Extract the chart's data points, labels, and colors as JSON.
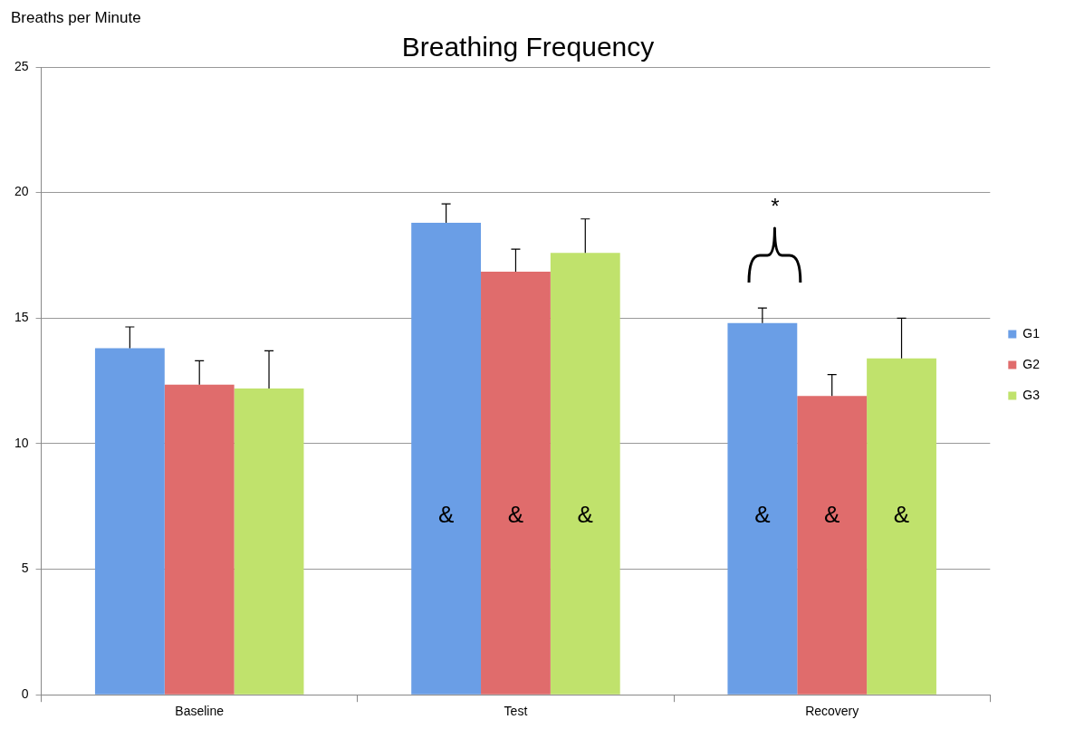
{
  "chart_data": {
    "type": "bar",
    "title": "Breathing Frequency",
    "ylabel": "Breaths per Minute",
    "categories": [
      "Baseline",
      "Test",
      "Recovery"
    ],
    "series": [
      {
        "name": "G1",
        "color": "#6a9ee6",
        "values": [
          13.8,
          18.8,
          14.8
        ],
        "errors": [
          [
            13.8,
            14.65
          ],
          [
            18.8,
            19.55
          ],
          [
            14.8,
            15.4
          ]
        ],
        "value_labels": [
          null,
          "&",
          "&"
        ]
      },
      {
        "name": "G2",
        "color": "#e06c6c",
        "values": [
          12.35,
          16.85,
          11.9
        ],
        "errors": [
          [
            12.35,
            13.3
          ],
          [
            16.85,
            17.75
          ],
          [
            11.9,
            12.75
          ]
        ],
        "value_labels": [
          null,
          "&",
          "&"
        ]
      },
      {
        "name": "G3",
        "color": "#c0e26c",
        "values": [
          12.2,
          17.6,
          13.4
        ],
        "errors": [
          [
            12.2,
            13.7
          ],
          [
            17.6,
            18.95
          ],
          [
            13.4,
            15.0
          ]
        ],
        "value_labels": [
          null,
          "&",
          "&"
        ]
      }
    ],
    "ylim": [
      0,
      25
    ],
    "yticks": [
      0,
      5,
      10,
      15,
      20,
      25
    ],
    "grid": "y",
    "legend": "right",
    "annotations": [
      "*"
    ]
  }
}
